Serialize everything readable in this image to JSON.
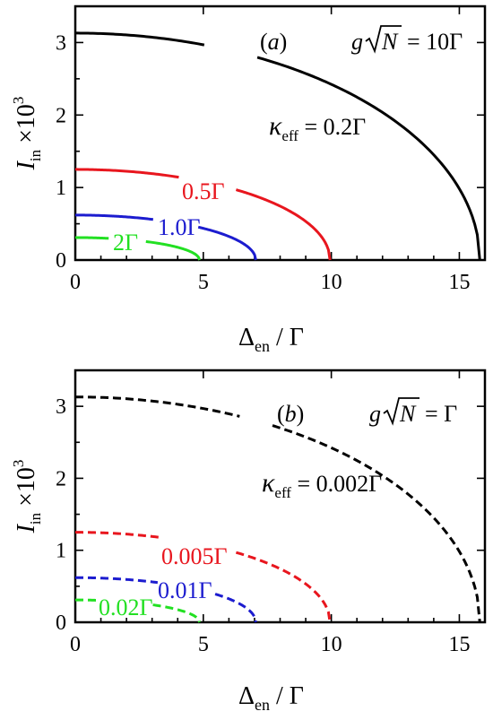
{
  "chart_data": [
    {
      "type": "line",
      "panel_label": "(a)",
      "coupling_label": {
        "prefix": "g",
        "radicand": "N",
        "suffix": "= 10Γ"
      },
      "xlabel": {
        "main": "Δ",
        "sub": "en",
        "rest": " / Γ"
      },
      "ylabel": {
        "main": "I",
        "sub": "in",
        "rest": " ×10",
        "sup": "3"
      },
      "xlim": [
        0,
        16
      ],
      "ylim": [
        0,
        3.5
      ],
      "xticks": [
        0,
        5,
        10,
        15
      ],
      "yticks": [
        0,
        1,
        2,
        3
      ],
      "line_style": "solid",
      "series": [
        {
          "label": "0.2Γ",
          "label_prefix": {
            "main": "κ",
            "sub": "eff",
            "rest": " = "
          },
          "color": "#000000",
          "y0": 3.13,
          "xmax": 15.8
        },
        {
          "label": "0.5Γ",
          "color": "#e8161e",
          "y0": 1.25,
          "xmax": 9.95
        },
        {
          "label": "1.0Γ",
          "color": "#1c1ccf",
          "y0": 0.62,
          "xmax": 7.05
        },
        {
          "label": "2Γ",
          "color": "#22e022",
          "y0": 0.31,
          "xmax": 4.85
        }
      ]
    },
    {
      "type": "line",
      "panel_label": "(b)",
      "coupling_label": {
        "prefix": "g",
        "radicand": "N",
        "suffix": "= Γ"
      },
      "xlabel": {
        "main": "Δ",
        "sub": "en",
        "rest": " / Γ"
      },
      "ylabel": {
        "main": "I",
        "sub": "in",
        "rest": " ×10",
        "sup": "3"
      },
      "xlim": [
        0,
        16
      ],
      "ylim": [
        0,
        3.5
      ],
      "xticks": [
        0,
        5,
        10,
        15
      ],
      "yticks": [
        0,
        1,
        2,
        3
      ],
      "line_style": "dashed",
      "series": [
        {
          "label": "0.002Γ",
          "label_prefix": {
            "main": "κ",
            "sub": "eff",
            "rest": " = "
          },
          "color": "#000000",
          "y0": 3.13,
          "xmax": 15.8
        },
        {
          "label": "0.005Γ",
          "color": "#e8161e",
          "y0": 1.25,
          "xmax": 9.95
        },
        {
          "label": "0.01Γ",
          "color": "#1c1ccf",
          "y0": 0.62,
          "xmax": 7.05
        },
        {
          "label": "0.02Γ",
          "color": "#22e022",
          "y0": 0.31,
          "xmax": 4.85
        }
      ]
    }
  ]
}
